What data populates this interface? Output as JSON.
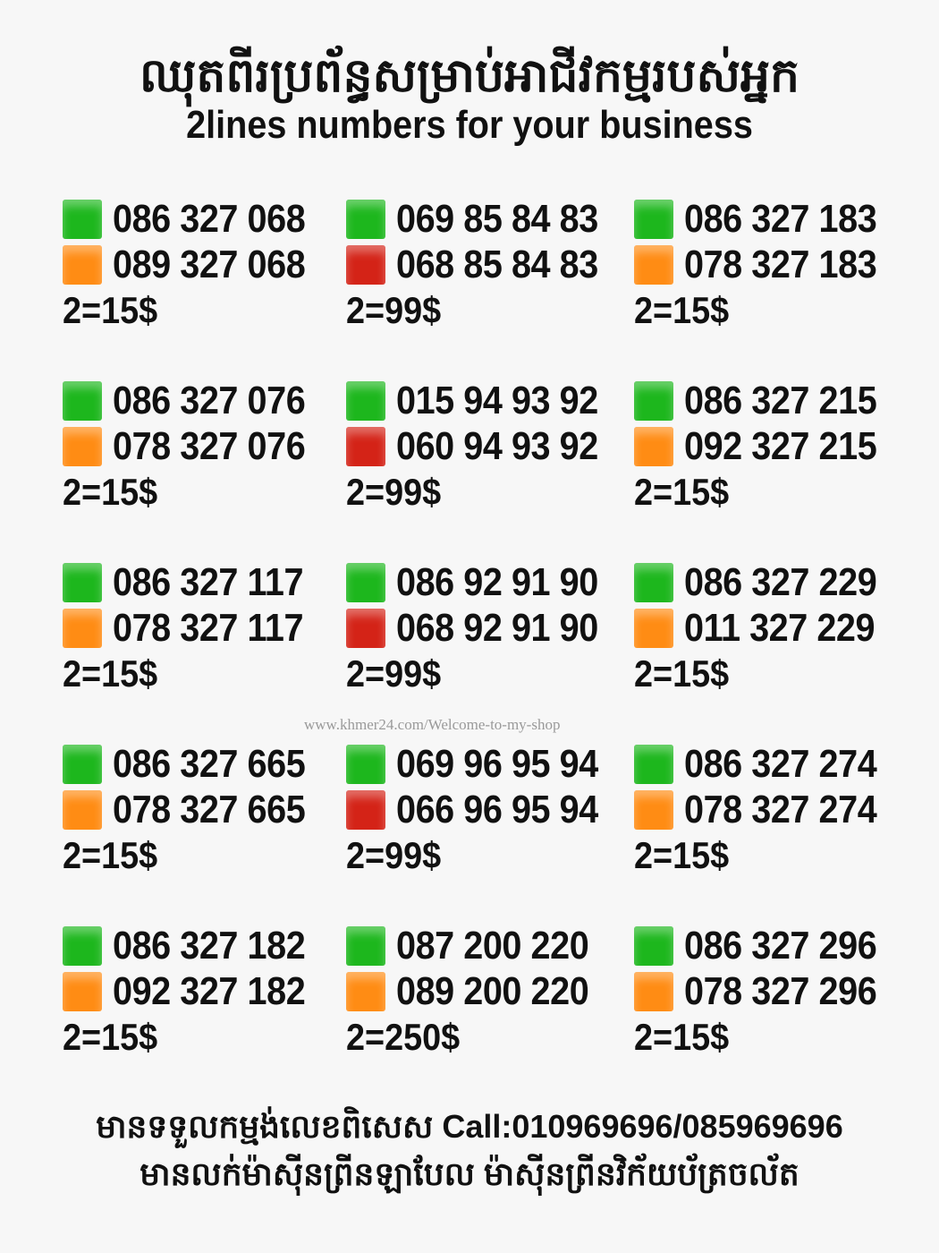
{
  "header": {
    "title_kh": "ឈុតពីរប្រព័ន្ធសម្រាប់អាជីវកម្មរបស់អ្នក",
    "title_en": "2lines numbers for your business"
  },
  "colors": {
    "green": "#1db71d",
    "orange": "#ff8c14",
    "red": "#d42317"
  },
  "offers": [
    {
      "lines": [
        {
          "number": "086 327 068",
          "color": "green"
        },
        {
          "number": "089 327 068",
          "color": "orange"
        }
      ],
      "price": "2=15$"
    },
    {
      "lines": [
        {
          "number": "069 85 84 83",
          "color": "green"
        },
        {
          "number": "068 85 84 83",
          "color": "red"
        }
      ],
      "price": "2=99$"
    },
    {
      "lines": [
        {
          "number": "086 327 183",
          "color": "green"
        },
        {
          "number": "078 327 183",
          "color": "orange"
        }
      ],
      "price": "2=15$"
    },
    {
      "lines": [
        {
          "number": "086 327 076",
          "color": "green"
        },
        {
          "number": "078 327 076",
          "color": "orange"
        }
      ],
      "price": "2=15$"
    },
    {
      "lines": [
        {
          "number": "015 94 93 92",
          "color": "green"
        },
        {
          "number": "060 94 93 92",
          "color": "red"
        }
      ],
      "price": "2=99$"
    },
    {
      "lines": [
        {
          "number": "086 327 215",
          "color": "green"
        },
        {
          "number": "092 327 215",
          "color": "orange"
        }
      ],
      "price": "2=15$"
    },
    {
      "lines": [
        {
          "number": "086 327 117",
          "color": "green"
        },
        {
          "number": "078 327 117",
          "color": "orange"
        }
      ],
      "price": "2=15$"
    },
    {
      "lines": [
        {
          "number": "086 92 91 90",
          "color": "green"
        },
        {
          "number": "068 92 91 90",
          "color": "red"
        }
      ],
      "price": "2=99$"
    },
    {
      "lines": [
        {
          "number": "086 327 229",
          "color": "green"
        },
        {
          "number": "011 327 229",
          "color": "orange"
        }
      ],
      "price": "2=15$"
    },
    {
      "lines": [
        {
          "number": "086 327 665",
          "color": "green"
        },
        {
          "number": "078 327 665",
          "color": "orange"
        }
      ],
      "price": "2=15$"
    },
    {
      "lines": [
        {
          "number": "069 96 95 94",
          "color": "green"
        },
        {
          "number": "066 96 95 94",
          "color": "red"
        }
      ],
      "price": "2=99$"
    },
    {
      "lines": [
        {
          "number": "086 327 274",
          "color": "green"
        },
        {
          "number": "078 327 274",
          "color": "orange"
        }
      ],
      "price": "2=15$"
    },
    {
      "lines": [
        {
          "number": "086 327 182",
          "color": "green"
        },
        {
          "number": "092 327 182",
          "color": "orange"
        }
      ],
      "price": "2=15$"
    },
    {
      "lines": [
        {
          "number": "087 200 220",
          "color": "green"
        },
        {
          "number": "089 200 220",
          "color": "orange"
        }
      ],
      "price": "2=250$"
    },
    {
      "lines": [
        {
          "number": "086 327 296",
          "color": "green"
        },
        {
          "number": "078 327 296",
          "color": "orange"
        }
      ],
      "price": "2=15$"
    }
  ],
  "watermark": "www.khmer24.com/Welcome-to-my-shop",
  "footer": {
    "line1": "មានទទួលកម្មង់លេខពិសេស Call:010969696/085969696",
    "line2": "មានលក់ម៉ាស៊ីនព្រីនឡាបែល ម៉ាស៊ីនព្រីនវិក័យប័ត្រចល័ត"
  }
}
